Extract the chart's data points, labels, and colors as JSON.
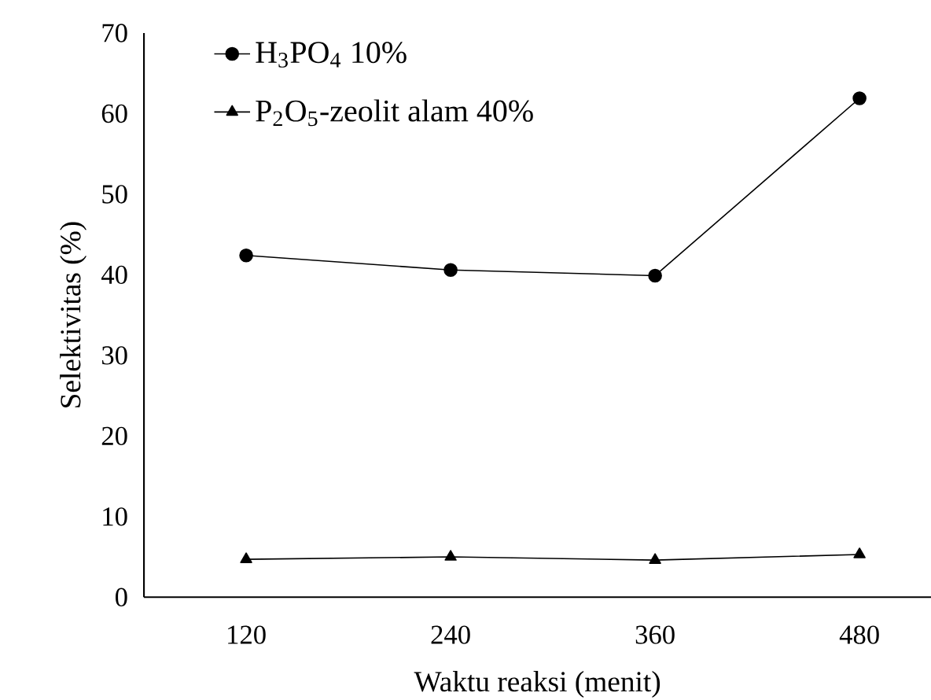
{
  "chart_data": {
    "type": "line",
    "xlabel": "Waktu reaksi (menit)",
    "ylabel": "Selektivitas (%)",
    "categories": [
      "120",
      "240",
      "360",
      "480"
    ],
    "series": [
      {
        "name": "H$_{3}$PO$_{4}$ 10%",
        "color": "#000000",
        "marker": "circle",
        "values": [
          42.4,
          40.6,
          39.9,
          61.9
        ]
      },
      {
        "name": "P$_{2}$O$_{5}$-zeolit alam 40%",
        "color": "#000000",
        "marker": "triangle",
        "values": [
          4.7,
          5.0,
          4.6,
          5.3
        ]
      }
    ],
    "ylim": [
      0,
      70
    ],
    "yticks": [
      0,
      10,
      20,
      30,
      40,
      50,
      60,
      70
    ],
    "legend": "top left"
  }
}
